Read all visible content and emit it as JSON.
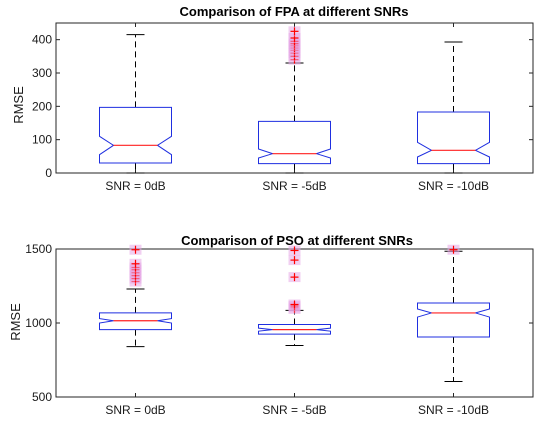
{
  "chart_data": [
    {
      "type": "box",
      "title": "Comparison of FPA at different SNRs",
      "xlabel": "",
      "ylabel": "RMSE",
      "ylim": [
        0,
        450
      ],
      "yticks": [
        0,
        100,
        200,
        300,
        400
      ],
      "grid": false,
      "notched": true,
      "categories": [
        "SNR = 0dB",
        "SNR = -5dB",
        "SNR = -10dB"
      ],
      "boxes": [
        {
          "whisker_low": 0,
          "q1": 30,
          "median": 83,
          "q3": 197,
          "whisker_high": 415,
          "notch_low": 55,
          "notch_high": 110,
          "outliers": []
        },
        {
          "whisker_low": 0,
          "q1": 28,
          "median": 58,
          "q3": 155,
          "whisker_high": 330,
          "notch_low": 45,
          "notch_high": 72,
          "outliers": [
            340,
            350,
            360,
            368,
            375,
            382,
            388,
            395,
            405,
            425
          ]
        },
        {
          "whisker_low": 0,
          "q1": 28,
          "median": 68,
          "q3": 183,
          "whisker_high": 393,
          "notch_low": 48,
          "notch_high": 92,
          "outliers": []
        }
      ]
    },
    {
      "type": "box",
      "title": "Comparison of PSO at different SNRs",
      "xlabel": "",
      "ylabel": "RMSE",
      "ylim": [
        500,
        1500
      ],
      "yticks": [
        500,
        1000,
        1500
      ],
      "grid": false,
      "notched": true,
      "categories": [
        "SNR = 0dB",
        "SNR = -5dB",
        "SNR = -10dB"
      ],
      "boxes": [
        {
          "whisker_low": 840,
          "q1": 955,
          "median": 1015,
          "q3": 1068,
          "whisker_high": 1230,
          "notch_low": 1000,
          "notch_high": 1030,
          "outliers": [
            1280,
            1300,
            1320,
            1340,
            1360,
            1375,
            1400,
            1495
          ]
        },
        {
          "whisker_low": 848,
          "q1": 925,
          "median": 955,
          "q3": 990,
          "whisker_high": 1085,
          "notch_low": 945,
          "notch_high": 965,
          "outliers": [
            1095,
            1105,
            1115,
            1125,
            1310,
            1425,
            1490
          ]
        },
        {
          "whisker_low": 605,
          "q1": 905,
          "median": 1068,
          "q3": 1135,
          "whisker_high": 1485,
          "notch_low": 1040,
          "notch_high": 1095,
          "outliers": [
            1495
          ]
        }
      ]
    }
  ],
  "colors": {
    "box": "#1f2fe0",
    "median": "#ff2020",
    "whisker": "#000000",
    "outlier": "#ff0000",
    "outlier_highlight": "#e6a8e6",
    "axis": "#262626"
  }
}
